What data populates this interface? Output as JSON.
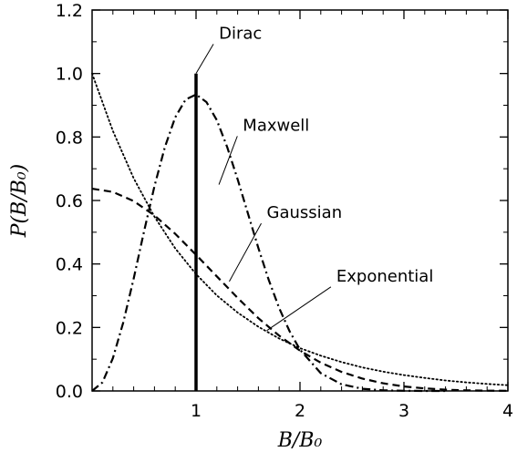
{
  "chart_data": {
    "type": "line",
    "title": "",
    "xlabel": "B/B₀",
    "ylabel": "P(B/B₀)",
    "xlim": [
      0,
      4
    ],
    "ylim": [
      0,
      1.2
    ],
    "xticks": [
      {
        "value": 1,
        "label": "1"
      },
      {
        "value": 2,
        "label": "2"
      },
      {
        "value": 3,
        "label": "3"
      },
      {
        "value": 4,
        "label": "4"
      }
    ],
    "yticks": [
      {
        "value": 0.0,
        "label": "0.0"
      },
      {
        "value": 0.2,
        "label": "0.2"
      },
      {
        "value": 0.4,
        "label": "0.4"
      },
      {
        "value": 0.6,
        "label": "0.6"
      },
      {
        "value": 0.8,
        "label": "0.8"
      },
      {
        "value": 1.0,
        "label": "1.0"
      },
      {
        "value": 1.2,
        "label": "1.2"
      }
    ],
    "grid": false,
    "legend": "none",
    "series": [
      {
        "name": "Dirac",
        "style": "solid-thick",
        "x": [
          1.0,
          1.0
        ],
        "y": [
          0.0,
          1.0
        ]
      },
      {
        "name": "Maxwell",
        "style": "dash-dot",
        "x": [
          0.0,
          0.1,
          0.2,
          0.3,
          0.4,
          0.5,
          0.6,
          0.7,
          0.8,
          0.9,
          1.0,
          1.1,
          1.2,
          1.3,
          1.4,
          1.5,
          1.6,
          1.7,
          1.8,
          1.9,
          2.0,
          2.2,
          2.4,
          2.6,
          2.8,
          3.0,
          3.2,
          3.4
        ],
        "y": [
          0.0,
          0.027,
          0.103,
          0.216,
          0.354,
          0.503,
          0.645,
          0.768,
          0.862,
          0.918,
          0.934,
          0.91,
          0.853,
          0.768,
          0.667,
          0.558,
          0.45,
          0.349,
          0.261,
          0.188,
          0.13,
          0.056,
          0.021,
          0.007,
          0.002,
          0.0005,
          0.0001,
          0.0
        ]
      },
      {
        "name": "Gaussian",
        "style": "dashed",
        "x": [
          0.0,
          0.2,
          0.4,
          0.6,
          0.8,
          1.0,
          1.2,
          1.4,
          1.6,
          1.8,
          2.0,
          2.2,
          2.4,
          2.6,
          2.8,
          3.0,
          3.2,
          3.4,
          3.6,
          3.8,
          4.0
        ],
        "y": [
          0.637,
          0.627,
          0.598,
          0.553,
          0.495,
          0.429,
          0.361,
          0.293,
          0.229,
          0.174,
          0.127,
          0.089,
          0.06,
          0.039,
          0.024,
          0.014,
          0.008,
          0.004,
          0.002,
          0.001,
          0.0005
        ]
      },
      {
        "name": "Exponential",
        "style": "dotted",
        "x": [
          0.0,
          0.2,
          0.4,
          0.6,
          0.8,
          1.0,
          1.2,
          1.4,
          1.6,
          1.8,
          2.0,
          2.2,
          2.4,
          2.6,
          2.8,
          3.0,
          3.2,
          3.4,
          3.6,
          3.8,
          4.0
        ],
        "y": [
          1.0,
          0.819,
          0.67,
          0.549,
          0.449,
          0.368,
          0.301,
          0.247,
          0.202,
          0.165,
          0.135,
          0.111,
          0.091,
          0.074,
          0.061,
          0.05,
          0.041,
          0.033,
          0.027,
          0.022,
          0.018
        ]
      }
    ],
    "annotations": [
      {
        "text": "Dirac",
        "series": "Dirac",
        "point": [
          1.0,
          1.0
        ],
        "text_pos": [
          1.22,
          1.11
        ]
      },
      {
        "text": "Maxwell",
        "series": "Maxwell",
        "point": [
          1.22,
          0.65
        ],
        "text_pos": [
          1.45,
          0.82
        ]
      },
      {
        "text": "Gaussian",
        "series": "Gaussian",
        "point": [
          1.32,
          0.345
        ],
        "text_pos": [
          1.68,
          0.545
        ]
      },
      {
        "text": "Exponential",
        "series": "Exponential",
        "point": [
          1.68,
          0.19
        ],
        "text_pos": [
          2.35,
          0.345
        ]
      }
    ]
  }
}
